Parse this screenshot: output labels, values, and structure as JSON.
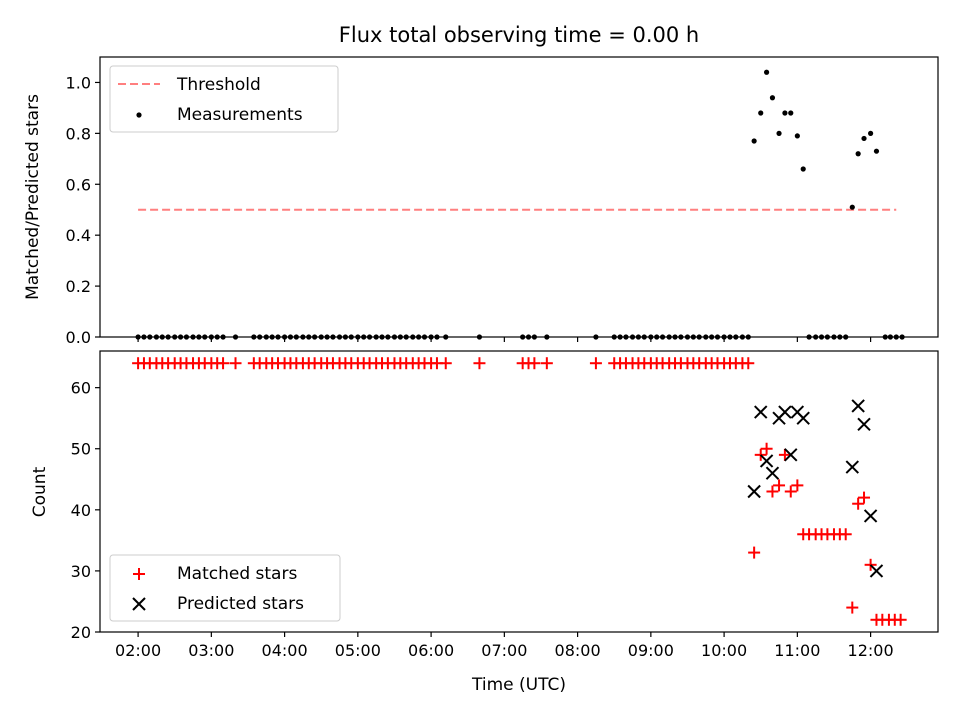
{
  "chart_data": [
    {
      "type": "scatter",
      "title": "Flux total observing time = 0.00 h",
      "xlabel": "",
      "ylabel": "Matched/Predicted stars",
      "xlim": [
        1.48,
        12.92
      ],
      "ylim": [
        0.0,
        1.1
      ],
      "yticks": [
        0.0,
        0.2,
        0.4,
        0.6,
        0.8,
        1.0
      ],
      "ytick_labels": [
        "0.0",
        "0.2",
        "0.4",
        "0.6",
        "0.8",
        "1.0"
      ],
      "legend_position": "upper-left",
      "series": [
        {
          "name": "Threshold",
          "type": "line",
          "style": "dashed",
          "color": "#ff7f7f",
          "x": [
            2.0,
            12.35
          ],
          "y": [
            0.5,
            0.5
          ]
        },
        {
          "name": "Measurements",
          "type": "scatter",
          "color": "#000000",
          "x": [
            2.0,
            2.08,
            2.16,
            2.25,
            2.33,
            2.41,
            2.5,
            2.58,
            2.66,
            2.75,
            2.83,
            2.91,
            3.0,
            3.08,
            3.16,
            3.33,
            3.58,
            3.66,
            3.75,
            3.83,
            3.91,
            4.0,
            4.08,
            4.16,
            4.25,
            4.33,
            4.41,
            4.5,
            4.58,
            4.66,
            4.75,
            4.83,
            4.91,
            5.0,
            5.08,
            5.16,
            5.25,
            5.33,
            5.41,
            5.5,
            5.58,
            5.66,
            5.75,
            5.83,
            5.91,
            6.0,
            6.08,
            6.2,
            6.66,
            7.25,
            7.33,
            7.41,
            7.58,
            8.25,
            8.5,
            8.58,
            8.66,
            8.75,
            8.83,
            8.91,
            9.0,
            9.08,
            9.16,
            9.25,
            9.33,
            9.41,
            9.5,
            9.58,
            9.66,
            9.75,
            9.83,
            9.91,
            10.0,
            10.08,
            10.16,
            10.25,
            10.33,
            10.41,
            10.5,
            10.58,
            10.66,
            10.75,
            10.83,
            10.91,
            11.0,
            11.08,
            11.16,
            11.25,
            11.33,
            11.41,
            11.5,
            11.58,
            11.66,
            11.75,
            11.83,
            11.91,
            12.0,
            12.08,
            12.2,
            12.27,
            12.35,
            12.43
          ],
          "y": [
            0,
            0,
            0,
            0,
            0,
            0,
            0,
            0,
            0,
            0,
            0,
            0,
            0,
            0,
            0,
            0,
            0,
            0,
            0,
            0,
            0,
            0,
            0,
            0,
            0,
            0,
            0,
            0,
            0,
            0,
            0,
            0,
            0,
            0,
            0,
            0,
            0,
            0,
            0,
            0,
            0,
            0,
            0,
            0,
            0,
            0,
            0,
            0,
            0,
            0,
            0,
            0,
            0,
            0,
            0,
            0,
            0,
            0,
            0,
            0,
            0,
            0,
            0,
            0,
            0,
            0,
            0,
            0,
            0,
            0,
            0,
            0,
            0,
            0,
            0,
            0,
            0,
            0.77,
            0.88,
            1.04,
            0.94,
            0.8,
            0.88,
            0.88,
            0.79,
            0.66,
            0,
            0,
            0,
            0,
            0,
            0,
            0,
            0.51,
            0.72,
            0.78,
            0.8,
            0.73,
            0,
            0,
            0,
            0
          ]
        }
      ]
    },
    {
      "type": "scatter",
      "title": "",
      "xlabel": "Time (UTC)",
      "ylabel": "Count",
      "xlim": [
        1.48,
        12.92
      ],
      "ylim": [
        20,
        66
      ],
      "yticks": [
        20,
        30,
        40,
        50,
        60
      ],
      "ytick_labels": [
        "20",
        "30",
        "40",
        "50",
        "60"
      ],
      "xticks": [
        2,
        3,
        4,
        5,
        6,
        7,
        8,
        9,
        10,
        11,
        12
      ],
      "xtick_labels": [
        "02:00",
        "03:00",
        "04:00",
        "05:00",
        "06:00",
        "07:00",
        "08:00",
        "09:00",
        "10:00",
        "11:00",
        "12:00"
      ],
      "legend_position": "lower-left",
      "series": [
        {
          "name": "Matched stars",
          "marker": "plus",
          "color": "#ff0000",
          "x": [
            2.0,
            2.08,
            2.16,
            2.25,
            2.33,
            2.41,
            2.5,
            2.58,
            2.66,
            2.75,
            2.83,
            2.91,
            3.0,
            3.08,
            3.16,
            3.33,
            3.58,
            3.66,
            3.75,
            3.83,
            3.91,
            4.0,
            4.08,
            4.16,
            4.25,
            4.33,
            4.41,
            4.5,
            4.58,
            4.66,
            4.75,
            4.83,
            4.91,
            5.0,
            5.08,
            5.16,
            5.25,
            5.33,
            5.41,
            5.5,
            5.58,
            5.66,
            5.75,
            5.83,
            5.91,
            6.0,
            6.08,
            6.2,
            6.66,
            7.25,
            7.33,
            7.41,
            7.58,
            8.25,
            8.5,
            8.58,
            8.66,
            8.75,
            8.83,
            8.91,
            9.0,
            9.08,
            9.16,
            9.25,
            9.33,
            9.41,
            9.5,
            9.58,
            9.66,
            9.75,
            9.83,
            9.91,
            10.0,
            10.08,
            10.16,
            10.25,
            10.33,
            10.41,
            10.5,
            10.58,
            10.66,
            10.75,
            10.83,
            10.91,
            11.0,
            11.08,
            11.16,
            11.25,
            11.33,
            11.41,
            11.5,
            11.58,
            11.66,
            11.75,
            11.83,
            11.91,
            12.0,
            12.08,
            12.16,
            12.25,
            12.33,
            12.41
          ],
          "y": [
            64,
            64,
            64,
            64,
            64,
            64,
            64,
            64,
            64,
            64,
            64,
            64,
            64,
            64,
            64,
            64,
            64,
            64,
            64,
            64,
            64,
            64,
            64,
            64,
            64,
            64,
            64,
            64,
            64,
            64,
            64,
            64,
            64,
            64,
            64,
            64,
            64,
            64,
            64,
            64,
            64,
            64,
            64,
            64,
            64,
            64,
            64,
            64,
            64,
            64,
            64,
            64,
            64,
            64,
            64,
            64,
            64,
            64,
            64,
            64,
            64,
            64,
            64,
            64,
            64,
            64,
            64,
            64,
            64,
            64,
            64,
            64,
            64,
            64,
            64,
            64,
            64,
            33,
            49,
            50,
            43,
            44,
            49,
            43,
            44,
            36,
            36,
            36,
            36,
            36,
            36,
            36,
            36,
            24,
            41,
            42,
            31,
            22,
            22,
            22,
            22,
            22
          ]
        },
        {
          "name": "Predicted stars",
          "marker": "x",
          "color": "#000000",
          "x": [
            10.41,
            10.5,
            10.58,
            10.66,
            10.75,
            10.83,
            10.91,
            11.0,
            11.08,
            11.75,
            11.83,
            11.91,
            12.0,
            12.08
          ],
          "y": [
            43,
            56,
            48,
            46,
            55,
            56,
            49,
            56,
            55,
            47,
            57,
            54,
            39,
            30
          ]
        }
      ]
    }
  ]
}
